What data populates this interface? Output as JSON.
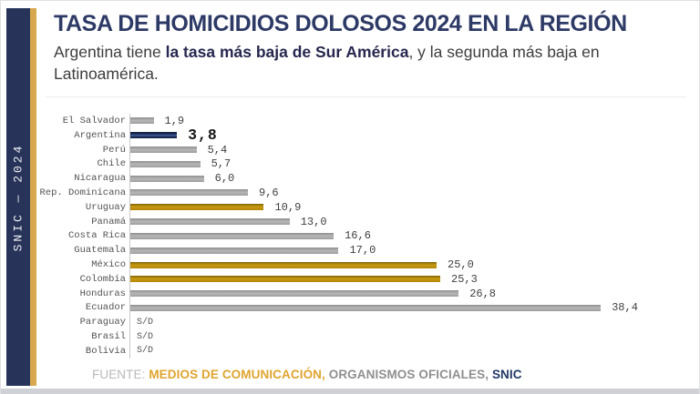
{
  "sidebar": {
    "vertical_text": "SNIC — 2024"
  },
  "header": {
    "title": "TASA DE HOMICIDIOS DOLOSOS 2024 EN LA REGIÓN",
    "subtitle_pre": "Argentina tiene ",
    "subtitle_bold": "la tasa más baja de Sur América",
    "subtitle_post": ", y la segunda más baja en\nLatinoamérica."
  },
  "chart_data": {
    "type": "bar",
    "orientation": "horizontal",
    "title": "TASA DE HOMICIDIOS DOLOSOS 2024 EN LA REGIÓN",
    "categories": [
      "El Salvador",
      "Argentina",
      "Perú",
      "Chile",
      "Nicaragua",
      "Rep. Dominicana",
      "Uruguay",
      "Panamá",
      "Costa Rica",
      "Guatemala",
      "México",
      "Colombia",
      "Honduras",
      "Ecuador",
      "Paraguay",
      "Brasil",
      "Bolivia"
    ],
    "values": [
      1.9,
      3.8,
      5.4,
      5.7,
      6.0,
      9.6,
      10.9,
      13.0,
      16.6,
      17.0,
      25.0,
      25.3,
      26.8,
      38.4,
      null,
      null,
      null
    ],
    "value_labels": [
      "1,9",
      "3,8",
      "5,4",
      "5,7",
      "6,0",
      "9,6",
      "10,9",
      "13,0",
      "16,6",
      "17,0",
      "25,0",
      "25,3",
      "26,8",
      "38,4",
      "S/D",
      "S/D",
      "S/D"
    ],
    "bar_colors": [
      "gray",
      "navy",
      "gray",
      "gray",
      "gray",
      "gray",
      "gold",
      "gray",
      "gray",
      "gray",
      "gold",
      "gold",
      "gray",
      "gray",
      null,
      null,
      null
    ],
    "highlight_index": 1,
    "no_data_label": "S/D",
    "xlim": [
      0,
      40
    ],
    "legend": "none",
    "grid": "off"
  },
  "footer": {
    "prefix": "FUENTE:",
    "source_media": "MEDIOS DE COMUNICACIÓN,",
    "source_official": "ORGANISMOS OFICIALES,",
    "source_snic": "SNIC"
  },
  "colors": {
    "navy": "#1F3864",
    "gold": "#BD8D07",
    "gray": "#A6A6A6",
    "sidebar_navy": "#283359",
    "gold_strip": "#D8A84E",
    "footer_gold": "#DFA42E",
    "footer_gray": "#8F8F8F",
    "footer_light_gray": "#B9B9B9"
  }
}
